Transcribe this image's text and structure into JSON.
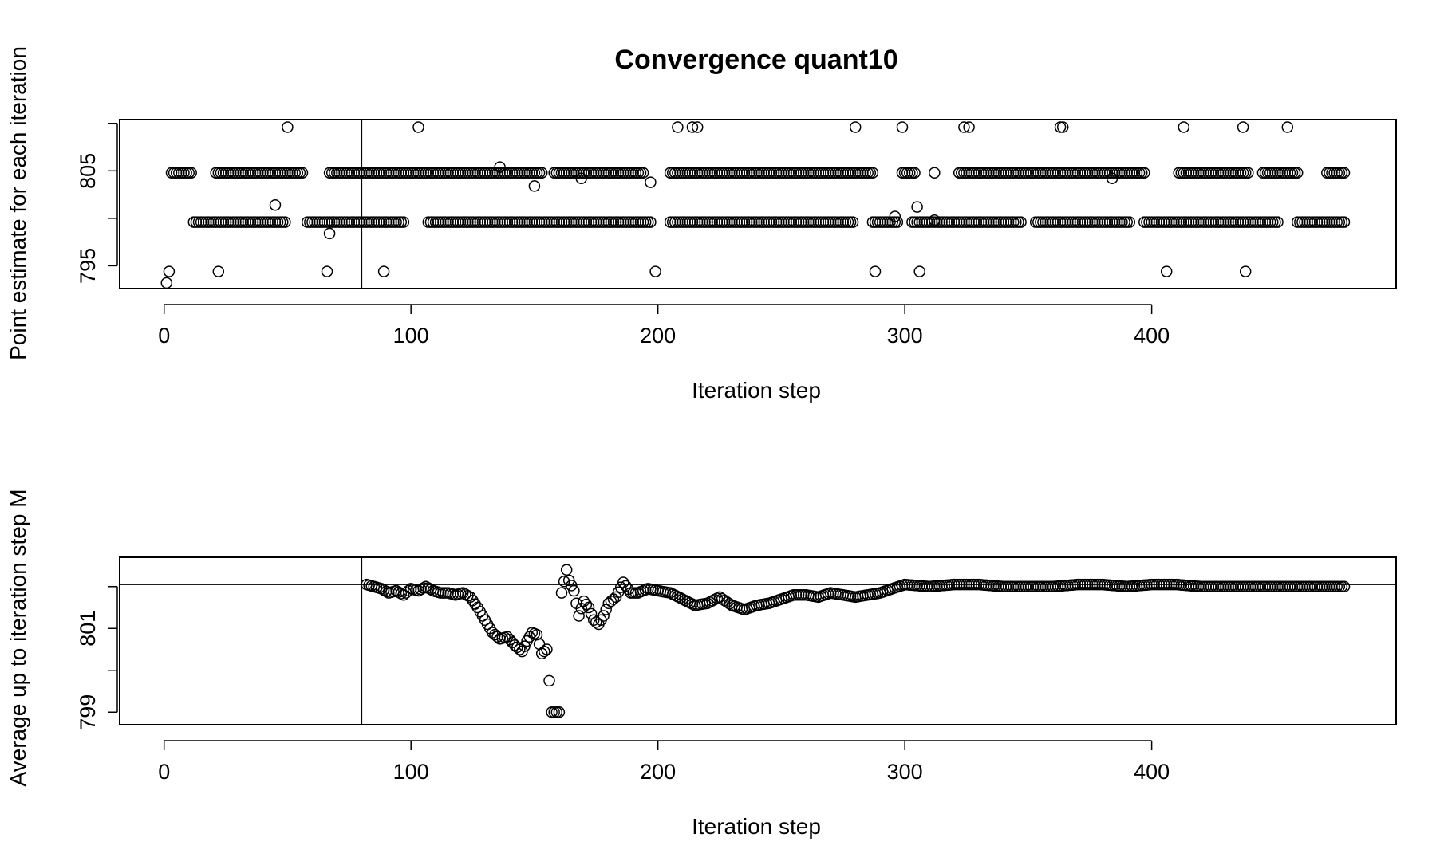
{
  "page": {
    "background": "#ffffff",
    "ink": "#000000"
  },
  "chart_data": [
    {
      "type": "scatter",
      "title": "Convergence quant10",
      "xlabel": "Iteration step",
      "ylabel": "Point estimate for each iteration",
      "xlim": [
        -18,
        499
      ],
      "ylim": [
        792.6,
        810.4
      ],
      "xticks": [
        0,
        100,
        200,
        300,
        400
      ],
      "yticks": [
        795,
        800,
        805,
        810
      ],
      "ytick_labels": [
        "795",
        "",
        "805",
        ""
      ],
      "marker": "open-circle",
      "grid": false,
      "legend": "none",
      "reference_lines": {
        "vertical_x": 80
      },
      "levels": [
        793.2,
        794.4,
        799.6,
        804.8,
        809.6
      ],
      "runs": [
        {
          "level": 804.8,
          "from": 3,
          "to": 478,
          "gaps": [
            [
              12,
              20
            ],
            [
              57,
              66
            ],
            [
              154,
              157
            ],
            [
              195,
              204
            ],
            [
              288,
              298
            ],
            [
              305,
              311
            ],
            [
              313,
              321
            ],
            [
              398,
              410
            ],
            [
              440,
              444
            ],
            [
              460,
              470
            ]
          ]
        },
        {
          "level": 799.6,
          "from": 12,
          "to": 478,
          "gaps": [
            [
              50,
              57
            ],
            [
              98,
              106
            ],
            [
              198,
              204
            ],
            [
              280,
              286
            ],
            [
              298,
              302
            ],
            [
              348,
              352
            ],
            [
              392,
              396
            ],
            [
              452,
              458
            ]
          ]
        }
      ],
      "points": [
        [
          1,
          793.2
        ],
        [
          2,
          794.4
        ],
        [
          22,
          794.4
        ],
        [
          66,
          794.4
        ],
        [
          89,
          794.4
        ],
        [
          199,
          794.4
        ],
        [
          288,
          794.4
        ],
        [
          306,
          794.4
        ],
        [
          406,
          794.4
        ],
        [
          438,
          794.4
        ],
        [
          50,
          809.6
        ],
        [
          103,
          809.6
        ],
        [
          208,
          809.6
        ],
        [
          214,
          809.6
        ],
        [
          216,
          809.6
        ],
        [
          280,
          809.6
        ],
        [
          299,
          809.6
        ],
        [
          324,
          809.6
        ],
        [
          326,
          809.6
        ],
        [
          363,
          809.6
        ],
        [
          364,
          809.6
        ],
        [
          413,
          809.6
        ],
        [
          437,
          809.6
        ],
        [
          455,
          809.6
        ],
        [
          45,
          801.4
        ],
        [
          67,
          798.4
        ],
        [
          136,
          805.4
        ],
        [
          150,
          803.4
        ],
        [
          169,
          804.2
        ],
        [
          197,
          803.8
        ],
        [
          296,
          800.2
        ],
        [
          305,
          801.2
        ],
        [
          312,
          799.8
        ],
        [
          384,
          804.2
        ]
      ]
    },
    {
      "type": "scatter",
      "title": "",
      "xlabel": "Iteration step",
      "ylabel": "Average up to iteration step M",
      "xlim": [
        -18,
        499
      ],
      "ylim": [
        798.7,
        802.7
      ],
      "xticks": [
        0,
        100,
        200,
        300,
        400
      ],
      "yticks": [
        799,
        800,
        801,
        802
      ],
      "ytick_labels": [
        "799",
        "",
        "801",
        ""
      ],
      "marker": "open-circle",
      "grid": false,
      "legend": "none",
      "reference_lines": {
        "vertical_x": 80,
        "horizontal_y": 802.05
      },
      "x": [
        82,
        85,
        88,
        91,
        94,
        97,
        100,
        103,
        106,
        109,
        112,
        115,
        118,
        121,
        124,
        127,
        130,
        133,
        136,
        139,
        142,
        145,
        147,
        149,
        151,
        153,
        155,
        157,
        159,
        160,
        161,
        163,
        164,
        166,
        168,
        170,
        172,
        174,
        176,
        178,
        180,
        183,
        186,
        189,
        192,
        196,
        200,
        205,
        210,
        215,
        220,
        225,
        230,
        235,
        240,
        245,
        250,
        255,
        260,
        265,
        270,
        275,
        280,
        285,
        290,
        295,
        300,
        310,
        320,
        330,
        340,
        350,
        360,
        370,
        380,
        390,
        400,
        410,
        420,
        430,
        440,
        450,
        460,
        470,
        478
      ],
      "y": [
        802.05,
        802.0,
        801.95,
        801.85,
        801.9,
        801.8,
        801.95,
        801.9,
        802.0,
        801.9,
        801.85,
        801.85,
        801.8,
        801.85,
        801.75,
        801.5,
        801.2,
        800.9,
        800.75,
        800.8,
        800.6,
        800.45,
        800.7,
        800.9,
        800.85,
        800.4,
        800.5,
        799.0,
        799.0,
        799.0,
        801.85,
        802.4,
        802.15,
        801.9,
        801.3,
        801.65,
        801.5,
        801.2,
        801.1,
        801.3,
        801.6,
        801.75,
        802.1,
        801.85,
        801.85,
        801.95,
        801.9,
        801.85,
        801.7,
        801.55,
        801.6,
        801.75,
        801.55,
        801.45,
        801.55,
        801.6,
        801.7,
        801.8,
        801.8,
        801.75,
        801.85,
        801.8,
        801.75,
        801.8,
        801.85,
        801.95,
        802.05,
        802.0,
        802.05,
        802.05,
        802.0,
        802.0,
        802.0,
        802.05,
        802.05,
        802.0,
        802.05,
        802.05,
        802.0,
        802.0,
        802.0,
        802.0,
        802.0,
        802.0,
        802.0
      ]
    }
  ]
}
